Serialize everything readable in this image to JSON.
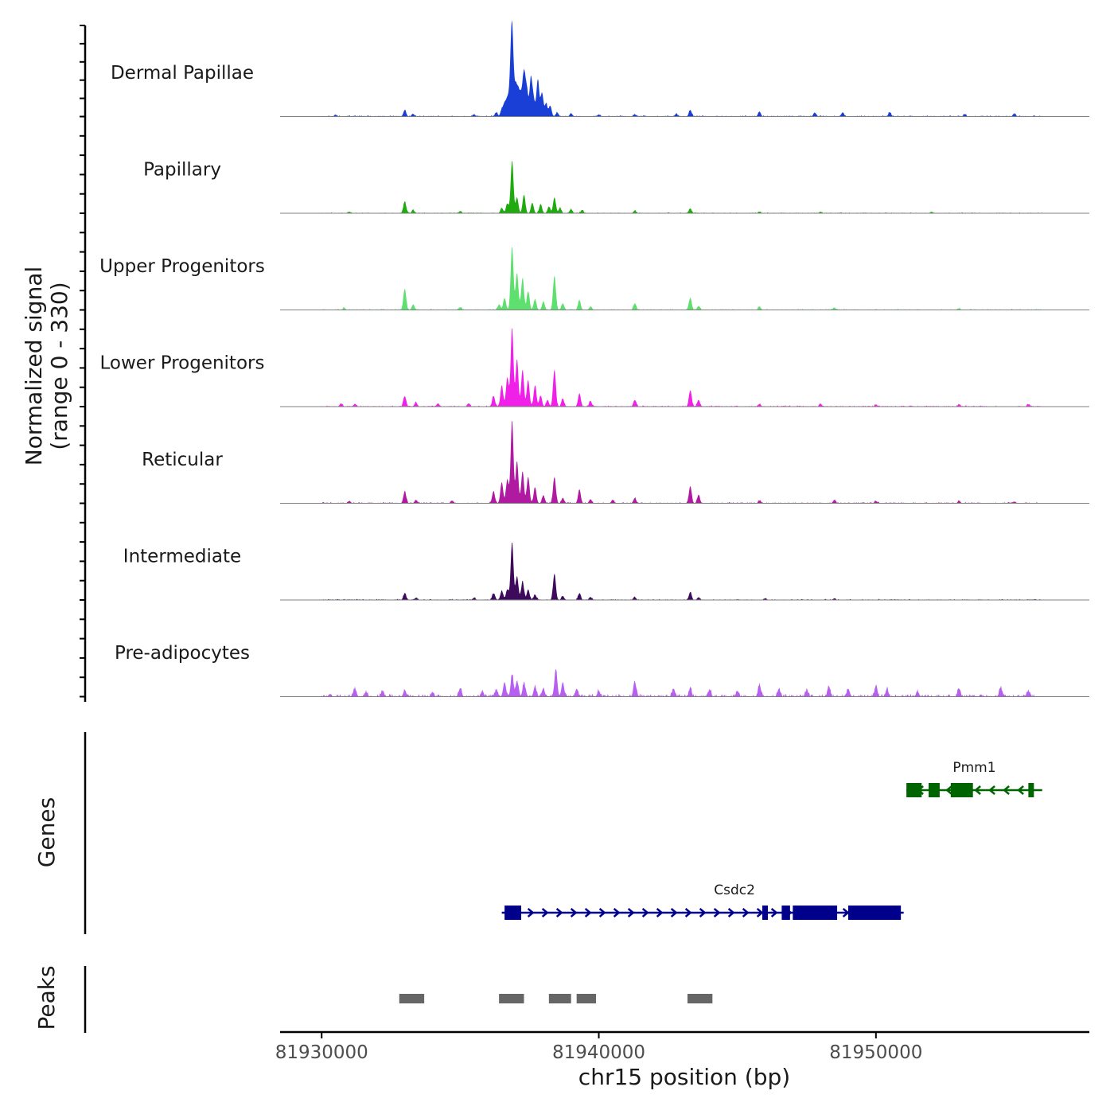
{
  "chart_data": {
    "type": "area",
    "title": "",
    "ylabel": "Normalized signal",
    "ylabel_range": "(range 0 - 330)",
    "ylim": [
      0,
      330
    ],
    "xlabel": "chr15 position (bp)",
    "xlim": [
      81928500,
      81957700
    ],
    "x_ticks": [
      {
        "value": 81930000,
        "label": "81930000"
      },
      {
        "value": 81940000,
        "label": "81940000"
      },
      {
        "value": 81950000,
        "label": "81950000"
      }
    ],
    "signal_start": 81930000,
    "signal_end": 81956000,
    "tracks": [
      {
        "name": "Dermal Papillae",
        "color": "#1a3fd6",
        "noise": 0.5,
        "peaks": [
          [
            81930500,
            6
          ],
          [
            81933000,
            25
          ],
          [
            81933300,
            10
          ],
          [
            81935500,
            8
          ],
          [
            81936300,
            15
          ],
          [
            81936500,
            25
          ],
          [
            81936600,
            45
          ],
          [
            81936700,
            60
          ],
          [
            81936800,
            80
          ],
          [
            81936870,
            330
          ],
          [
            81937000,
            110
          ],
          [
            81937100,
            90
          ],
          [
            81937200,
            70
          ],
          [
            81937300,
            155
          ],
          [
            81937400,
            100
          ],
          [
            81937550,
            145
          ],
          [
            81937650,
            60
          ],
          [
            81937800,
            140
          ],
          [
            81937950,
            90
          ],
          [
            81938100,
            50
          ],
          [
            81938250,
            40
          ],
          [
            81938500,
            15
          ],
          [
            81939000,
            12
          ],
          [
            81940000,
            8
          ],
          [
            81941300,
            8
          ],
          [
            81942800,
            10
          ],
          [
            81943300,
            25
          ],
          [
            81945800,
            16
          ],
          [
            81947800,
            14
          ],
          [
            81948800,
            16
          ],
          [
            81950500,
            16
          ],
          [
            81953200,
            8
          ],
          [
            81955000,
            10
          ]
        ]
      },
      {
        "name": "Papillary",
        "color": "#1faa0f",
        "noise": 0.4,
        "peaks": [
          [
            81931000,
            6
          ],
          [
            81933000,
            45
          ],
          [
            81933300,
            12
          ],
          [
            81935000,
            8
          ],
          [
            81936500,
            20
          ],
          [
            81936700,
            35
          ],
          [
            81936870,
            200
          ],
          [
            81937050,
            60
          ],
          [
            81937300,
            70
          ],
          [
            81937600,
            40
          ],
          [
            81937900,
            35
          ],
          [
            81938200,
            25
          ],
          [
            81938400,
            60
          ],
          [
            81938600,
            20
          ],
          [
            81939000,
            15
          ],
          [
            81939400,
            12
          ],
          [
            81941300,
            10
          ],
          [
            81943300,
            18
          ],
          [
            81945800,
            6
          ],
          [
            81948000,
            6
          ],
          [
            81952000,
            5
          ]
        ]
      },
      {
        "name": "Upper Progenitors",
        "color": "#5ee06e",
        "noise": 0.45,
        "peaks": [
          [
            81930800,
            6
          ],
          [
            81933000,
            80
          ],
          [
            81933300,
            20
          ],
          [
            81935000,
            10
          ],
          [
            81936400,
            20
          ],
          [
            81936600,
            45
          ],
          [
            81936870,
            240
          ],
          [
            81937050,
            140
          ],
          [
            81937250,
            120
          ],
          [
            81937450,
            70
          ],
          [
            81937700,
            40
          ],
          [
            81938000,
            30
          ],
          [
            81938400,
            130
          ],
          [
            81938700,
            25
          ],
          [
            81939300,
            35
          ],
          [
            81939700,
            12
          ],
          [
            81941300,
            25
          ],
          [
            81943300,
            45
          ],
          [
            81943600,
            15
          ],
          [
            81945800,
            12
          ],
          [
            81948500,
            8
          ],
          [
            81953000,
            6
          ]
        ]
      },
      {
        "name": "Lower Progenitors",
        "color": "#f020e8",
        "noise": 0.5,
        "peaks": [
          [
            81930700,
            12
          ],
          [
            81931200,
            8
          ],
          [
            81933000,
            40
          ],
          [
            81933400,
            15
          ],
          [
            81934200,
            12
          ],
          [
            81935300,
            12
          ],
          [
            81936200,
            40
          ],
          [
            81936500,
            80
          ],
          [
            81936700,
            110
          ],
          [
            81936870,
            300
          ],
          [
            81937050,
            180
          ],
          [
            81937250,
            140
          ],
          [
            81937450,
            100
          ],
          [
            81937700,
            80
          ],
          [
            81937900,
            40
          ],
          [
            81938150,
            25
          ],
          [
            81938400,
            140
          ],
          [
            81938700,
            30
          ],
          [
            81939300,
            50
          ],
          [
            81939700,
            20
          ],
          [
            81941300,
            25
          ],
          [
            81943300,
            60
          ],
          [
            81943600,
            25
          ],
          [
            81945800,
            10
          ],
          [
            81948000,
            10
          ],
          [
            81950000,
            8
          ],
          [
            81953000,
            8
          ],
          [
            81955500,
            8
          ]
        ]
      },
      {
        "name": "Reticular",
        "color": "#b01aa0",
        "noise": 0.5,
        "peaks": [
          [
            81931000,
            8
          ],
          [
            81933000,
            45
          ],
          [
            81933400,
            12
          ],
          [
            81934700,
            10
          ],
          [
            81936200,
            45
          ],
          [
            81936500,
            80
          ],
          [
            81936700,
            90
          ],
          [
            81936870,
            315
          ],
          [
            81937050,
            160
          ],
          [
            81937250,
            120
          ],
          [
            81937450,
            100
          ],
          [
            81937700,
            60
          ],
          [
            81938000,
            30
          ],
          [
            81938400,
            100
          ],
          [
            81938700,
            20
          ],
          [
            81939300,
            50
          ],
          [
            81939700,
            15
          ],
          [
            81940500,
            12
          ],
          [
            81941300,
            20
          ],
          [
            81943300,
            65
          ],
          [
            81943600,
            30
          ],
          [
            81945800,
            10
          ],
          [
            81948500,
            12
          ],
          [
            81950000,
            8
          ],
          [
            81953000,
            8
          ],
          [
            81955000,
            6
          ]
        ]
      },
      {
        "name": "Intermediate",
        "color": "#3d0a5c",
        "noise": 0.45,
        "peaks": [
          [
            81933000,
            25
          ],
          [
            81933400,
            8
          ],
          [
            81935500,
            8
          ],
          [
            81936200,
            25
          ],
          [
            81936500,
            35
          ],
          [
            81936700,
            40
          ],
          [
            81936870,
            220
          ],
          [
            81937050,
            90
          ],
          [
            81937250,
            70
          ],
          [
            81937450,
            40
          ],
          [
            81937700,
            20
          ],
          [
            81938400,
            100
          ],
          [
            81938700,
            15
          ],
          [
            81939300,
            25
          ],
          [
            81939700,
            10
          ],
          [
            81941300,
            10
          ],
          [
            81943300,
            30
          ],
          [
            81943600,
            10
          ],
          [
            81946000,
            6
          ],
          [
            81948500,
            6
          ]
        ]
      },
      {
        "name": "Pre-adipocytes",
        "color": "#b85ef0",
        "noise": 1.1,
        "peaks": [
          [
            81930300,
            10
          ],
          [
            81931200,
            30
          ],
          [
            81931600,
            18
          ],
          [
            81932200,
            22
          ],
          [
            81933000,
            25
          ],
          [
            81934000,
            18
          ],
          [
            81935000,
            30
          ],
          [
            81935800,
            22
          ],
          [
            81936300,
            25
          ],
          [
            81936600,
            55
          ],
          [
            81936870,
            85
          ],
          [
            81937050,
            60
          ],
          [
            81937300,
            50
          ],
          [
            81937700,
            40
          ],
          [
            81938000,
            30
          ],
          [
            81938450,
            105
          ],
          [
            81938700,
            55
          ],
          [
            81939200,
            30
          ],
          [
            81940000,
            22
          ],
          [
            81941300,
            55
          ],
          [
            81942700,
            30
          ],
          [
            81943300,
            30
          ],
          [
            81944000,
            25
          ],
          [
            81945000,
            22
          ],
          [
            81945800,
            45
          ],
          [
            81946500,
            30
          ],
          [
            81947500,
            25
          ],
          [
            81948300,
            40
          ],
          [
            81949000,
            30
          ],
          [
            81950000,
            40
          ],
          [
            81950400,
            30
          ],
          [
            81951500,
            20
          ],
          [
            81953000,
            30
          ],
          [
            81954500,
            35
          ],
          [
            81955500,
            22
          ]
        ]
      }
    ],
    "genes": [
      {
        "name": "Pmm1",
        "strand": "-",
        "start": 81951100,
        "end": 81956000,
        "color": "#006400",
        "exons": [
          [
            81951100,
            81951650
          ],
          [
            81951900,
            81952300
          ],
          [
            81952700,
            81953500
          ],
          [
            81955500,
            81955700
          ]
        ]
      },
      {
        "name": "Csdc2",
        "strand": "+",
        "start": 81936500,
        "end": 81951000,
        "color": "#00008b",
        "exons": [
          [
            81936600,
            81937200
          ],
          [
            81945900,
            81946100
          ],
          [
            81946600,
            81946900
          ],
          [
            81947000,
            81948600
          ],
          [
            81949000,
            81950900
          ]
        ]
      }
    ],
    "peaks_track": [
      [
        81932800,
        81933700
      ],
      [
        81936400,
        81937300
      ],
      [
        81938200,
        81939000
      ],
      [
        81939200,
        81939900
      ],
      [
        81943200,
        81944100
      ]
    ],
    "panel_labels": {
      "genes": "Genes",
      "peaks": "Peaks"
    }
  }
}
